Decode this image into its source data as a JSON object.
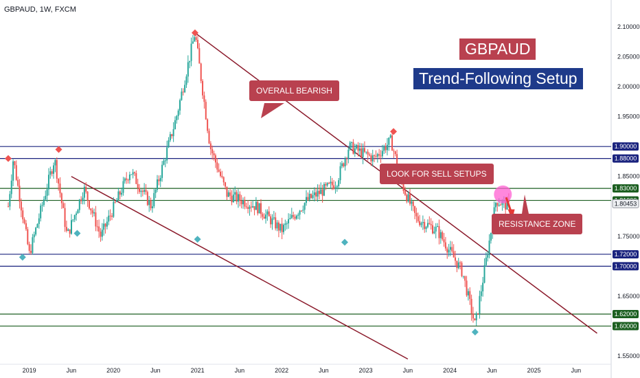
{
  "header": {
    "ticker": "GBPAUD, 1W, FXCM"
  },
  "titles": {
    "pair": "GBPAUD",
    "setup": "Trend-Following Setup"
  },
  "annotations": {
    "bearish": "OVERALL BEARISH",
    "sell": "LOOK FOR SELL SETUPS",
    "resistance": "RESISTANCE ZONE"
  },
  "colors": {
    "bull": "#26a69a",
    "bear": "#ef5350",
    "blue_level": "#1a237e",
    "green_level": "#1b5e20",
    "trendline": "#8b1a2b",
    "marker_red": "#ef5350",
    "marker_teal": "#4fb3bf",
    "title_red": "#b9414f",
    "title_blue": "#1e3a8a",
    "circle": "#ff5fd2"
  },
  "chart_data": {
    "type": "candlestick",
    "symbol": "GBPAUD",
    "timeframe": "1W",
    "y_ticks": [
      "2.10000",
      "2.05000",
      "2.00000",
      "1.95000",
      "1.85000",
      "1.75000",
      "1.65000",
      "1.55000"
    ],
    "ylim": [
      1.545,
      2.11
    ],
    "x_ticks": [
      "2019",
      "Jun",
      "2020",
      "Jun",
      "2021",
      "Jun",
      "2022",
      "Jun",
      "2023",
      "Jun",
      "2024",
      "Jun",
      "2025",
      "Jun"
    ],
    "current_price": "1.80453",
    "levels": [
      {
        "price": 1.9,
        "label": "1.90000",
        "color": "blue"
      },
      {
        "price": 1.88,
        "label": "1.88000",
        "color": "blue"
      },
      {
        "price": 1.83,
        "label": "1.83000",
        "color": "green"
      },
      {
        "price": 1.81,
        "label": "1.81000",
        "color": "green"
      },
      {
        "price": 1.72,
        "label": "1.72000",
        "color": "blue"
      },
      {
        "price": 1.7,
        "label": "1.70000",
        "color": "blue"
      },
      {
        "price": 1.62,
        "label": "1.62000",
        "color": "green"
      },
      {
        "price": 1.6,
        "label": "1.60000",
        "color": "green"
      }
    ],
    "series": [
      {
        "t": 0.0,
        "y": 1.8
      },
      {
        "t": 0.06,
        "y": 1.88
      },
      {
        "t": 0.25,
        "y": 1.72
      },
      {
        "t": 0.55,
        "y": 1.88
      },
      {
        "t": 0.7,
        "y": 1.75
      },
      {
        "t": 0.9,
        "y": 1.83
      },
      {
        "t": 1.1,
        "y": 1.75
      },
      {
        "t": 1.45,
        "y": 1.86
      },
      {
        "t": 1.7,
        "y": 1.8
      },
      {
        "t": 2.0,
        "y": 1.95
      },
      {
        "t": 2.22,
        "y": 2.09
      },
      {
        "t": 2.4,
        "y": 1.9
      },
      {
        "t": 2.6,
        "y": 1.82
      },
      {
        "t": 2.95,
        "y": 1.8
      },
      {
        "t": 3.25,
        "y": 1.76
      },
      {
        "t": 3.55,
        "y": 1.81
      },
      {
        "t": 3.9,
        "y": 1.84
      },
      {
        "t": 4.05,
        "y": 1.9
      },
      {
        "t": 4.35,
        "y": 1.88
      },
      {
        "t": 4.55,
        "y": 1.91
      },
      {
        "t": 4.7,
        "y": 1.83
      },
      {
        "t": 4.85,
        "y": 1.78
      },
      {
        "t": 5.1,
        "y": 1.76
      },
      {
        "t": 5.4,
        "y": 1.69
      },
      {
        "t": 5.55,
        "y": 1.6
      },
      {
        "t": 5.8,
        "y": 1.81
      },
      {
        "t": 5.95,
        "y": 1.8
      }
    ]
  }
}
